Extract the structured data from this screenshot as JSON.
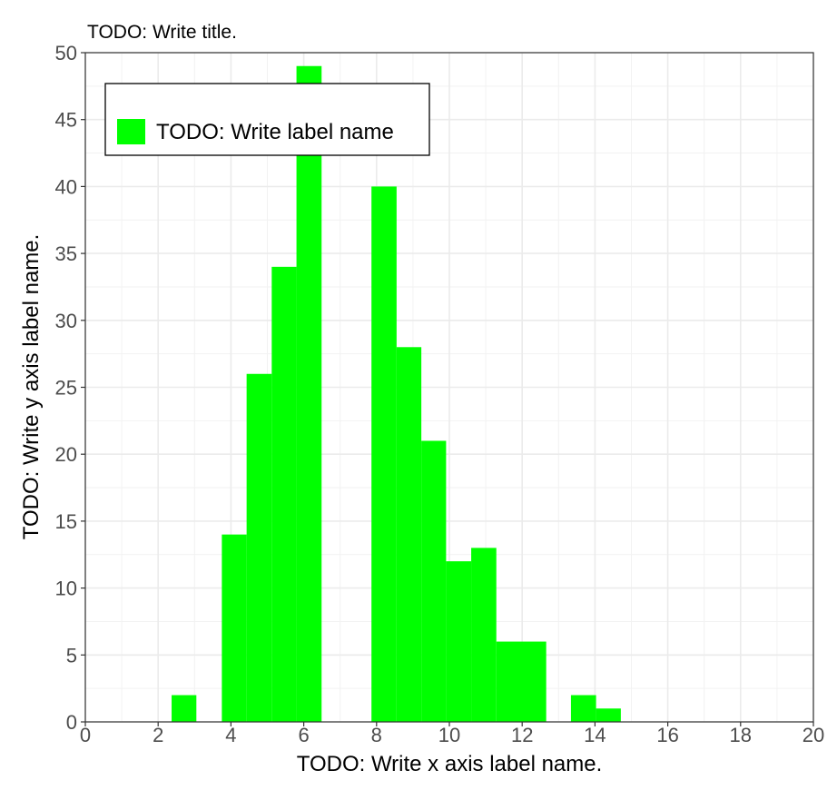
{
  "chart_data": {
    "type": "bar",
    "title": "TODO: Write title.",
    "xlabel": "TODO: Write x axis label name.",
    "ylabel": "TODO: Write y axis label name.",
    "xlim": [
      0,
      20
    ],
    "ylim": [
      0,
      50
    ],
    "x_ticks": [
      0,
      2,
      4,
      6,
      8,
      10,
      12,
      14,
      16,
      18,
      20
    ],
    "y_ticks": [
      0,
      5,
      10,
      15,
      20,
      25,
      30,
      35,
      40,
      45,
      50
    ],
    "grid": true,
    "legend_position": "top-left",
    "series": [
      {
        "name": "TODO: Write label name",
        "color": "#00ff00",
        "bins": [
          {
            "x0": 2.37,
            "x1": 3.05,
            "value": 2
          },
          {
            "x0": 3.75,
            "x1": 4.43,
            "value": 14
          },
          {
            "x0": 4.43,
            "x1": 5.12,
            "value": 26
          },
          {
            "x0": 5.12,
            "x1": 5.8,
            "value": 34
          },
          {
            "x0": 5.8,
            "x1": 6.49,
            "value": 49
          },
          {
            "x0": 7.86,
            "x1": 8.55,
            "value": 40
          },
          {
            "x0": 8.55,
            "x1": 9.23,
            "value": 28
          },
          {
            "x0": 9.23,
            "x1": 9.91,
            "value": 21
          },
          {
            "x0": 9.91,
            "x1": 10.6,
            "value": 12
          },
          {
            "x0": 10.6,
            "x1": 11.29,
            "value": 13
          },
          {
            "x0": 11.29,
            "x1": 11.97,
            "value": 6
          },
          {
            "x0": 11.97,
            "x1": 12.66,
            "value": 6
          },
          {
            "x0": 13.34,
            "x1": 14.03,
            "value": 2
          },
          {
            "x0": 14.03,
            "x1": 14.71,
            "value": 1
          }
        ]
      }
    ]
  }
}
